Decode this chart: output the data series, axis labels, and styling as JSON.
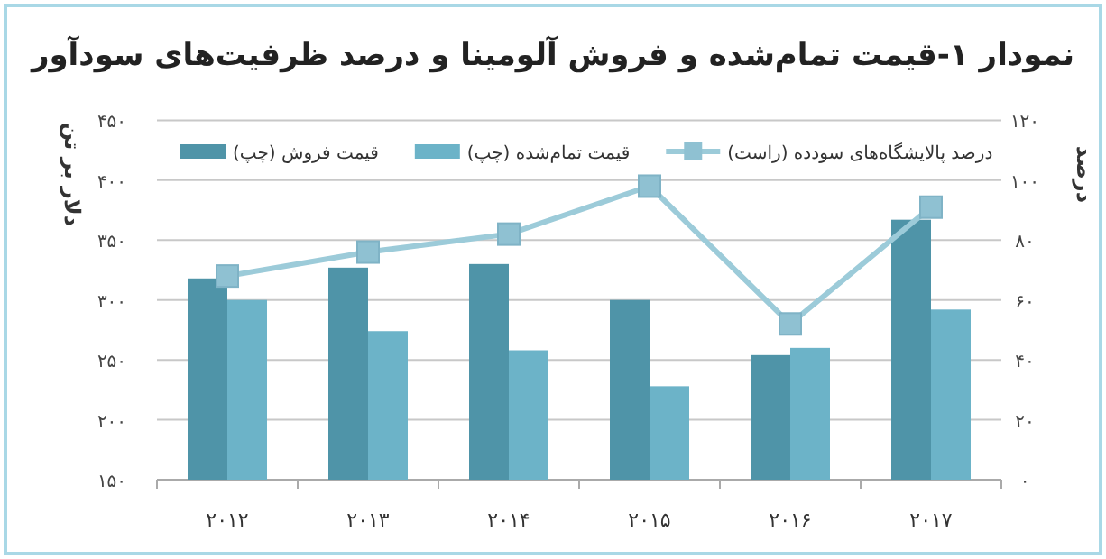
{
  "chart_data": {
    "type": "bar",
    "title": "نمودار ۱-قیمت تمام‌شده و فروش آلومینا و درصد ظرفیت‌های سودآور",
    "ylabel": "دلار بر تن",
    "y2label": "درصد",
    "categories": [
      "۲۰۱۲",
      "۲۰۱۳",
      "۲۰۱۴",
      "۲۰۱۵",
      "۲۰۱۶",
      "۲۰۱۷"
    ],
    "series": [
      {
        "name": "قیمت فروش (چپ)",
        "color": "#4f94a8",
        "values": [
          318,
          327,
          330,
          300,
          254,
          367
        ]
      },
      {
        "name": "قیمت تمام‌شده (چپ)",
        "color": "#6cb3c8",
        "values": [
          300,
          274,
          258,
          228,
          260,
          292
        ]
      },
      {
        "name": "درصد پالایشگاه‌های سودده (راست)",
        "type": "line",
        "axis": "y2",
        "color": "#9ccbd9",
        "marker": "square",
        "values": [
          68,
          76,
          82,
          98,
          52,
          91
        ]
      }
    ],
    "ylim": [
      150,
      450
    ],
    "yticks": [
      {
        "value": 150,
        "label": "۱۵۰"
      },
      {
        "value": 200,
        "label": "۲۰۰"
      },
      {
        "value": 250,
        "label": "۲۵۰"
      },
      {
        "value": 300,
        "label": "۳۰۰"
      },
      {
        "value": 350,
        "label": "۳۵۰"
      },
      {
        "value": 400,
        "label": "۴۰۰"
      },
      {
        "value": 450,
        "label": "۴۵۰"
      }
    ],
    "y2lim": [
      0,
      120
    ],
    "y2ticks": [
      {
        "value": 0,
        "label": "۰"
      },
      {
        "value": 20,
        "label": "۲۰"
      },
      {
        "value": 40,
        "label": "۴۰"
      },
      {
        "value": 60,
        "label": "۶۰"
      },
      {
        "value": 80,
        "label": "۸۰"
      },
      {
        "value": 100,
        "label": "۱۰۰"
      },
      {
        "value": 120,
        "label": "۱۲۰"
      }
    ],
    "grid": "y",
    "legend": "top"
  }
}
